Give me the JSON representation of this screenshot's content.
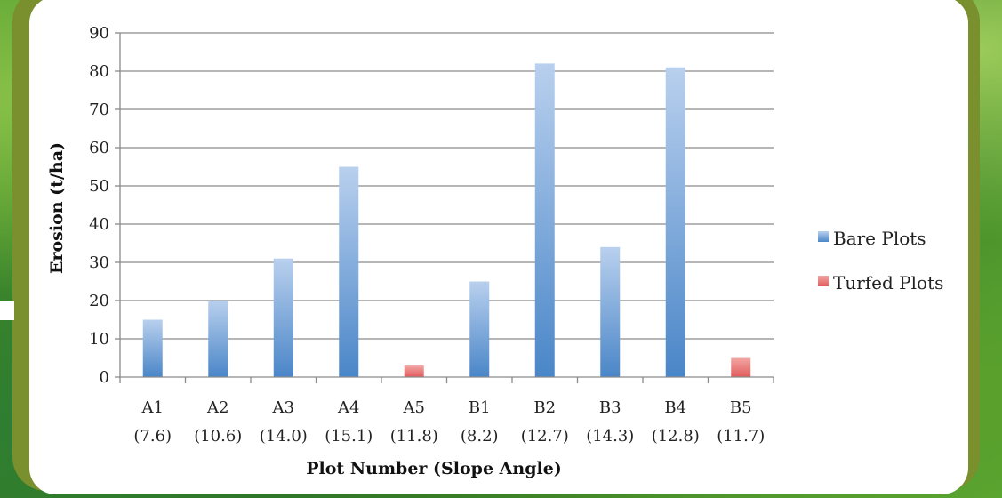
{
  "chart_data": {
    "type": "bar",
    "categories": [
      "A1",
      "A2",
      "A3",
      "A4",
      "A5",
      "B1",
      "B2",
      "B3",
      "B4",
      "B5"
    ],
    "category_sublabels": [
      "(7.6)",
      "(10.6)",
      "(14.0)",
      "(15.1)",
      "(11.8)",
      "(8.2)",
      "(12.7)",
      "(14.3)",
      "(12.8)",
      "(11.7)"
    ],
    "series": [
      {
        "name": "Bare Plots",
        "values": [
          15,
          20,
          31,
          55,
          null,
          25,
          82,
          34,
          81,
          null
        ],
        "color": "#4a86c8"
      },
      {
        "name": "Turfed Plots",
        "values": [
          null,
          null,
          null,
          null,
          3,
          null,
          null,
          null,
          null,
          5
        ],
        "color": "#e05c5c"
      }
    ],
    "title": "",
    "xlabel": "Plot Number (Slope Angle)",
    "ylabel": "Erosion (t/ha)",
    "ylim": [
      0,
      90
    ],
    "yticks": [
      "0",
      "10",
      "20",
      "30",
      "40",
      "50",
      "60",
      "70",
      "80",
      "90"
    ],
    "grid": true,
    "legend_position": "right"
  }
}
